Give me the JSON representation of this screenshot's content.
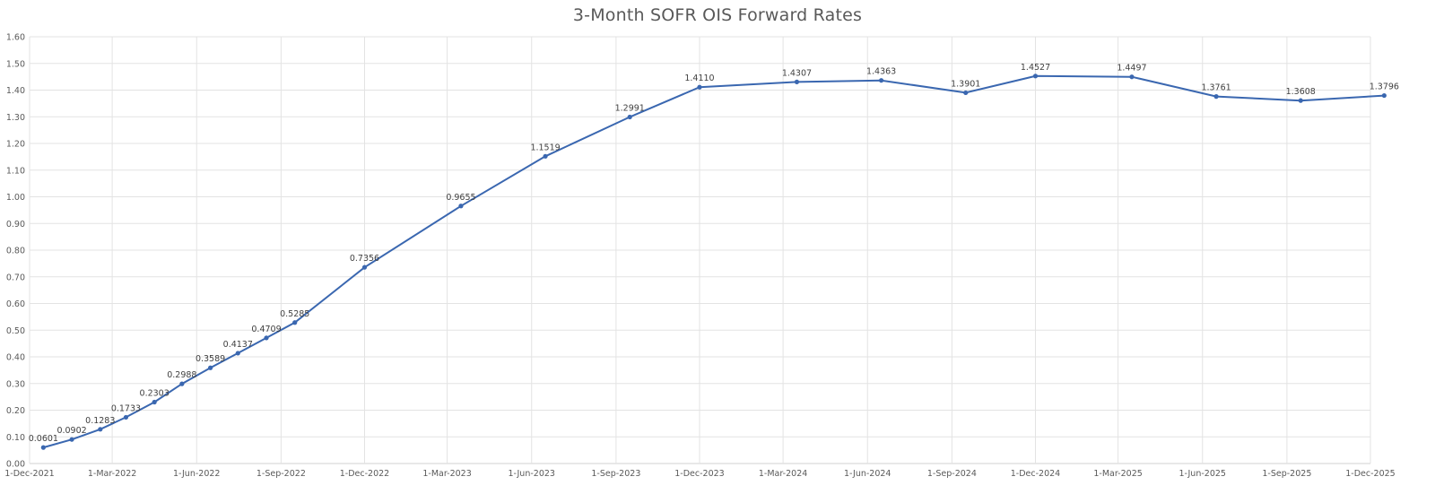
{
  "chart_data": {
    "type": "line",
    "title": "3-Month SOFR OIS Forward Rates",
    "xlabel": "",
    "ylabel": "",
    "ylim": [
      0,
      1.6
    ],
    "y_ticks": [
      "0.00",
      "0.10",
      "0.20",
      "0.30",
      "0.40",
      "0.50",
      "0.60",
      "0.70",
      "0.80",
      "0.90",
      "1.00",
      "1.10",
      "1.20",
      "1.30",
      "1.40",
      "1.50",
      "1.60"
    ],
    "x_ticks": [
      "1-Dec-2021",
      "1-Mar-2022",
      "1-Jun-2022",
      "1-Sep-2022",
      "1-Dec-2022",
      "1-Mar-2023",
      "1-Jun-2023",
      "1-Sep-2023",
      "1-Dec-2023",
      "1-Mar-2024",
      "1-Jun-2024",
      "1-Sep-2024",
      "1-Dec-2024",
      "1-Mar-2025",
      "1-Jun-2025",
      "1-Sep-2025",
      "1-Dec-2025"
    ],
    "grid": true,
    "legend": "none",
    "color": "#3a67b0",
    "series": [
      {
        "points": [
          {
            "x": "2021-12-16",
            "y": 0.0601,
            "label": "0.0601"
          },
          {
            "x": "2022-01-16",
            "y": 0.0902,
            "label": "0.0902"
          },
          {
            "x": "2022-02-16",
            "y": 0.1283,
            "label": "0.1283"
          },
          {
            "x": "2022-03-16",
            "y": 0.1733,
            "label": "0.1733"
          },
          {
            "x": "2022-04-16",
            "y": 0.2303,
            "label": "0.2303"
          },
          {
            "x": "2022-05-16",
            "y": 0.2988,
            "label": "0.2988"
          },
          {
            "x": "2022-06-16",
            "y": 0.3589,
            "label": "0.3589"
          },
          {
            "x": "2022-07-16",
            "y": 0.4137,
            "label": "0.4137"
          },
          {
            "x": "2022-08-16",
            "y": 0.4709,
            "label": "0.4709"
          },
          {
            "x": "2022-09-16",
            "y": 0.5285,
            "label": "0.5285"
          },
          {
            "x": "2022-12-01",
            "y": 0.7356,
            "label": "0.7356"
          },
          {
            "x": "2023-03-16",
            "y": 0.9655,
            "label": "0.9655"
          },
          {
            "x": "2023-06-16",
            "y": 1.1519,
            "label": "1.1519"
          },
          {
            "x": "2023-09-16",
            "y": 1.2991,
            "label": "1.2991"
          },
          {
            "x": "2023-12-01",
            "y": 1.411,
            "label": "1.4110"
          },
          {
            "x": "2024-03-16",
            "y": 1.4307,
            "label": "1.4307"
          },
          {
            "x": "2024-06-16",
            "y": 1.4363,
            "label": "1.4363"
          },
          {
            "x": "2024-09-16",
            "y": 1.3901,
            "label": "1.3901"
          },
          {
            "x": "2024-12-01",
            "y": 1.4527,
            "label": "1.4527"
          },
          {
            "x": "2025-03-16",
            "y": 1.4497,
            "label": "1.4497"
          },
          {
            "x": "2025-06-16",
            "y": 1.3761,
            "label": "1.3761"
          },
          {
            "x": "2025-09-16",
            "y": 1.3608,
            "label": "1.3608"
          },
          {
            "x": "2025-12-16",
            "y": 1.3796,
            "label": "1.3796"
          }
        ]
      }
    ]
  }
}
